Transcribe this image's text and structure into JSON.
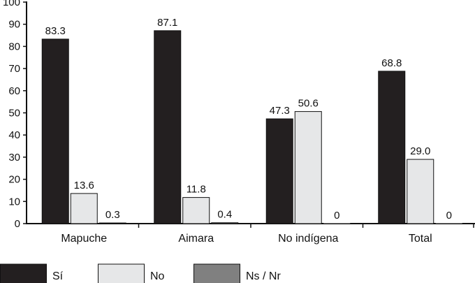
{
  "chart_data": {
    "type": "bar",
    "title": "",
    "xlabel": "",
    "ylabel": "",
    "ylim": [
      0,
      100
    ],
    "yticks": [
      "0",
      "10",
      "20",
      "30",
      "40",
      "50",
      "60",
      "70",
      "80",
      "90",
      "100"
    ],
    "grid": false,
    "legend_position": "bottom-left",
    "categories": [
      "Mapuche",
      "Aimara",
      "No indígena",
      "Total"
    ],
    "series": [
      {
        "name": "Sí",
        "color": "#231f20",
        "values": [
          83.3,
          87.1,
          47.3,
          68.8
        ],
        "labels": [
          "83.3",
          "87.1",
          "47.3",
          "68.8"
        ]
      },
      {
        "name": "No",
        "color": "#e6e7e8",
        "values": [
          13.6,
          11.8,
          50.6,
          29.0
        ],
        "labels": [
          "13.6",
          "11.8",
          "50.6",
          "29.0"
        ]
      },
      {
        "name": "Ns / Nr",
        "color": "#808080",
        "values": [
          0.3,
          0.4,
          0,
          0
        ],
        "labels": [
          "0.3",
          "0.4",
          "0",
          "0"
        ]
      }
    ]
  }
}
